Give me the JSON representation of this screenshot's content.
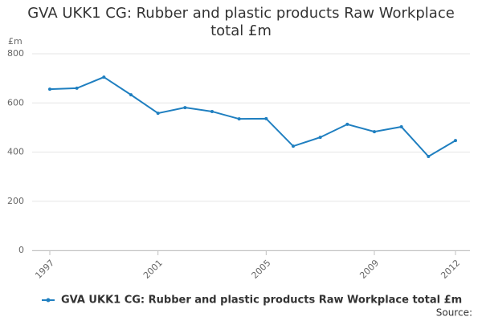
{
  "chart_data": {
    "type": "line",
    "title": "GVA UKK1 CG: Rubber and plastic products Raw Workplace total £m",
    "y_unit": "£m",
    "x": [
      1997,
      1998,
      1999,
      2000,
      2001,
      2002,
      2003,
      2004,
      2005,
      2006,
      2007,
      2008,
      2009,
      2010,
      2011,
      2012
    ],
    "xlim": [
      1997,
      2012
    ],
    "xticks": [
      1997,
      2001,
      2005,
      2009,
      2012
    ],
    "series": [
      {
        "name": "GVA UKK1 CG: Rubber and plastic products Raw Workplace total £m",
        "color": "#1f7fc0",
        "values": [
          656,
          660,
          705,
          633,
          558,
          581,
          565,
          535,
          536,
          424,
          460,
          513,
          483,
          503,
          382,
          447
        ]
      }
    ],
    "ylim": [
      0,
      800
    ],
    "yticks": [
      0,
      200,
      400,
      600,
      800
    ],
    "grid": true,
    "legend": "bottom",
    "source": "Source:"
  }
}
